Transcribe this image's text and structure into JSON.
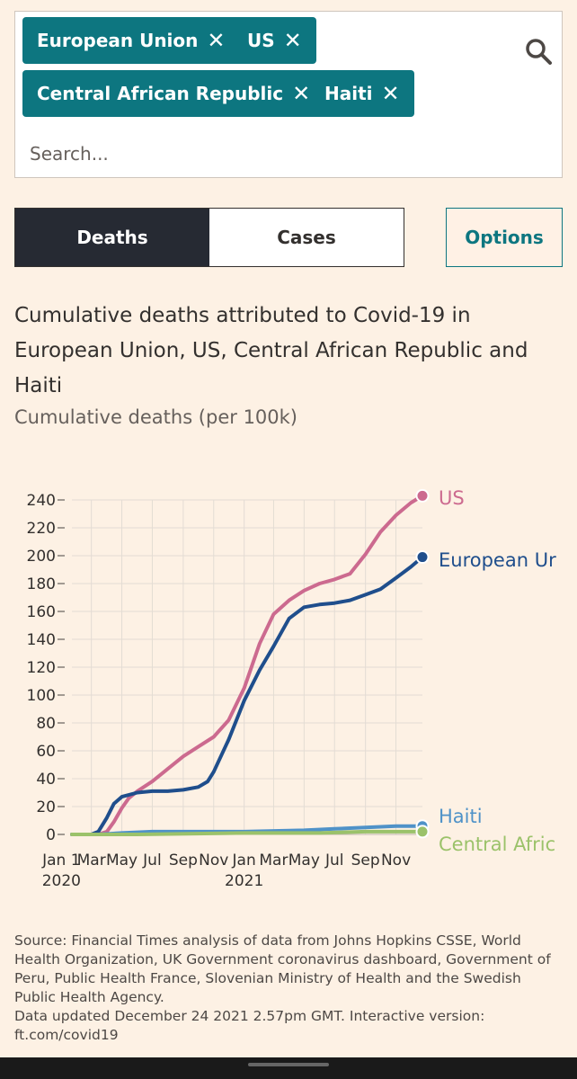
{
  "search": {
    "placeholder": "Search...",
    "chips": [
      {
        "label": "European Union",
        "close": "✕"
      },
      {
        "label": "US",
        "close": "✕"
      },
      {
        "label": "Central African Republic",
        "close": "✕"
      },
      {
        "label": "Haiti",
        "close": "✕"
      }
    ]
  },
  "tabs": {
    "deaths": "Deaths",
    "cases": "Cases"
  },
  "options_label": "Options",
  "icons": {
    "search": "search-icon",
    "remove": "close-icon"
  },
  "colors": {
    "teal": "#0d7680",
    "us": "#cc6a8f",
    "eu": "#1f4e8c",
    "haiti": "#4f92c8",
    "car": "#9bc26a"
  },
  "chart_data": {
    "type": "line",
    "title": "Cumulative deaths attributed to Covid-19 in European Union, US, Central African Republic and Haiti",
    "subtitle": "Cumulative deaths (per 100k)",
    "ylim": [
      0,
      240
    ],
    "yticks": [
      0,
      20,
      40,
      60,
      80,
      100,
      120,
      140,
      160,
      180,
      200,
      220,
      240
    ],
    "xlim": [
      "2020-01-22",
      "2021-12-24"
    ],
    "xticks": [
      {
        "date": "2020-01-01",
        "label": "Jan 1",
        "sublabel": "2020"
      },
      {
        "date": "2020-03-01",
        "label": "Mar"
      },
      {
        "date": "2020-05-01",
        "label": "May"
      },
      {
        "date": "2020-07-01",
        "label": "Jul"
      },
      {
        "date": "2020-09-01",
        "label": "Sep"
      },
      {
        "date": "2020-11-01",
        "label": "Nov"
      },
      {
        "date": "2021-01-01",
        "label": "Jan",
        "sublabel": "2021"
      },
      {
        "date": "2021-03-01",
        "label": "Mar"
      },
      {
        "date": "2021-05-01",
        "label": "May"
      },
      {
        "date": "2021-07-01",
        "label": "Jul"
      },
      {
        "date": "2021-09-01",
        "label": "Sep"
      },
      {
        "date": "2021-11-01",
        "label": "Nov"
      }
    ],
    "series": [
      {
        "name": "US",
        "label": "US",
        "color": "#cc6a8f",
        "points": [
          [
            "2020-01-22",
            0
          ],
          [
            "2020-03-15",
            0
          ],
          [
            "2020-04-01",
            2
          ],
          [
            "2020-04-15",
            9
          ],
          [
            "2020-05-01",
            19
          ],
          [
            "2020-05-15",
            26
          ],
          [
            "2020-06-01",
            31
          ],
          [
            "2020-07-01",
            38
          ],
          [
            "2020-08-01",
            47
          ],
          [
            "2020-09-01",
            56
          ],
          [
            "2020-10-01",
            63
          ],
          [
            "2020-11-01",
            70
          ],
          [
            "2020-12-01",
            82
          ],
          [
            "2021-01-01",
            105
          ],
          [
            "2021-02-01",
            137
          ],
          [
            "2021-03-01",
            158
          ],
          [
            "2021-04-01",
            168
          ],
          [
            "2021-05-01",
            175
          ],
          [
            "2021-06-01",
            180
          ],
          [
            "2021-07-01",
            183
          ],
          [
            "2021-08-01",
            187
          ],
          [
            "2021-09-01",
            201
          ],
          [
            "2021-10-01",
            217
          ],
          [
            "2021-11-01",
            229
          ],
          [
            "2021-12-01",
            238
          ],
          [
            "2021-12-24",
            243
          ]
        ]
      },
      {
        "name": "European Union",
        "label": "European Ur",
        "color": "#1f4e8c",
        "points": [
          [
            "2020-01-22",
            0
          ],
          [
            "2020-03-01",
            0
          ],
          [
            "2020-03-15",
            2
          ],
          [
            "2020-04-01",
            12
          ],
          [
            "2020-04-15",
            22
          ],
          [
            "2020-05-01",
            27
          ],
          [
            "2020-06-01",
            30
          ],
          [
            "2020-07-01",
            31
          ],
          [
            "2020-08-01",
            31
          ],
          [
            "2020-09-01",
            32
          ],
          [
            "2020-10-01",
            34
          ],
          [
            "2020-10-20",
            38
          ],
          [
            "2020-11-01",
            45
          ],
          [
            "2020-12-01",
            68
          ],
          [
            "2021-01-01",
            96
          ],
          [
            "2021-02-01",
            118
          ],
          [
            "2021-03-01",
            135
          ],
          [
            "2021-04-01",
            155
          ],
          [
            "2021-05-01",
            163
          ],
          [
            "2021-06-01",
            165
          ],
          [
            "2021-07-01",
            166
          ],
          [
            "2021-08-01",
            168
          ],
          [
            "2021-09-01",
            172
          ],
          [
            "2021-10-01",
            176
          ],
          [
            "2021-11-01",
            184
          ],
          [
            "2021-12-01",
            192
          ],
          [
            "2021-12-24",
            199
          ]
        ]
      },
      {
        "name": "Haiti",
        "label": "Haiti",
        "color": "#4f92c8",
        "points": [
          [
            "2020-01-22",
            0
          ],
          [
            "2020-03-15",
            0
          ],
          [
            "2020-05-01",
            1
          ],
          [
            "2020-07-01",
            2
          ],
          [
            "2020-10-01",
            2
          ],
          [
            "2021-01-01",
            2
          ],
          [
            "2021-05-01",
            3
          ],
          [
            "2021-07-01",
            4
          ],
          [
            "2021-09-01",
            5
          ],
          [
            "2021-11-01",
            6
          ],
          [
            "2021-12-24",
            6
          ]
        ]
      },
      {
        "name": "Central African Republic",
        "label": "Central Afric",
        "color": "#9bc26a",
        "points": [
          [
            "2020-01-22",
            0
          ],
          [
            "2020-06-01",
            0
          ],
          [
            "2021-01-01",
            1
          ],
          [
            "2021-06-01",
            1
          ],
          [
            "2021-09-01",
            2
          ],
          [
            "2021-12-24",
            2
          ]
        ]
      }
    ],
    "grid": true,
    "legend": "end-of-line labels"
  },
  "source": {
    "text": "Source: Financial Times analysis of data from Johns Hopkins CSSE, World Health Organization, UK Government coronavirus dashboard, Government of Peru, Public Health France, Slovenian Ministry of Health and the Swedish Public Health Agency.",
    "updated": "Data updated December 24 2021 2.57pm GMT. Interactive version: ft.com/covid19"
  }
}
